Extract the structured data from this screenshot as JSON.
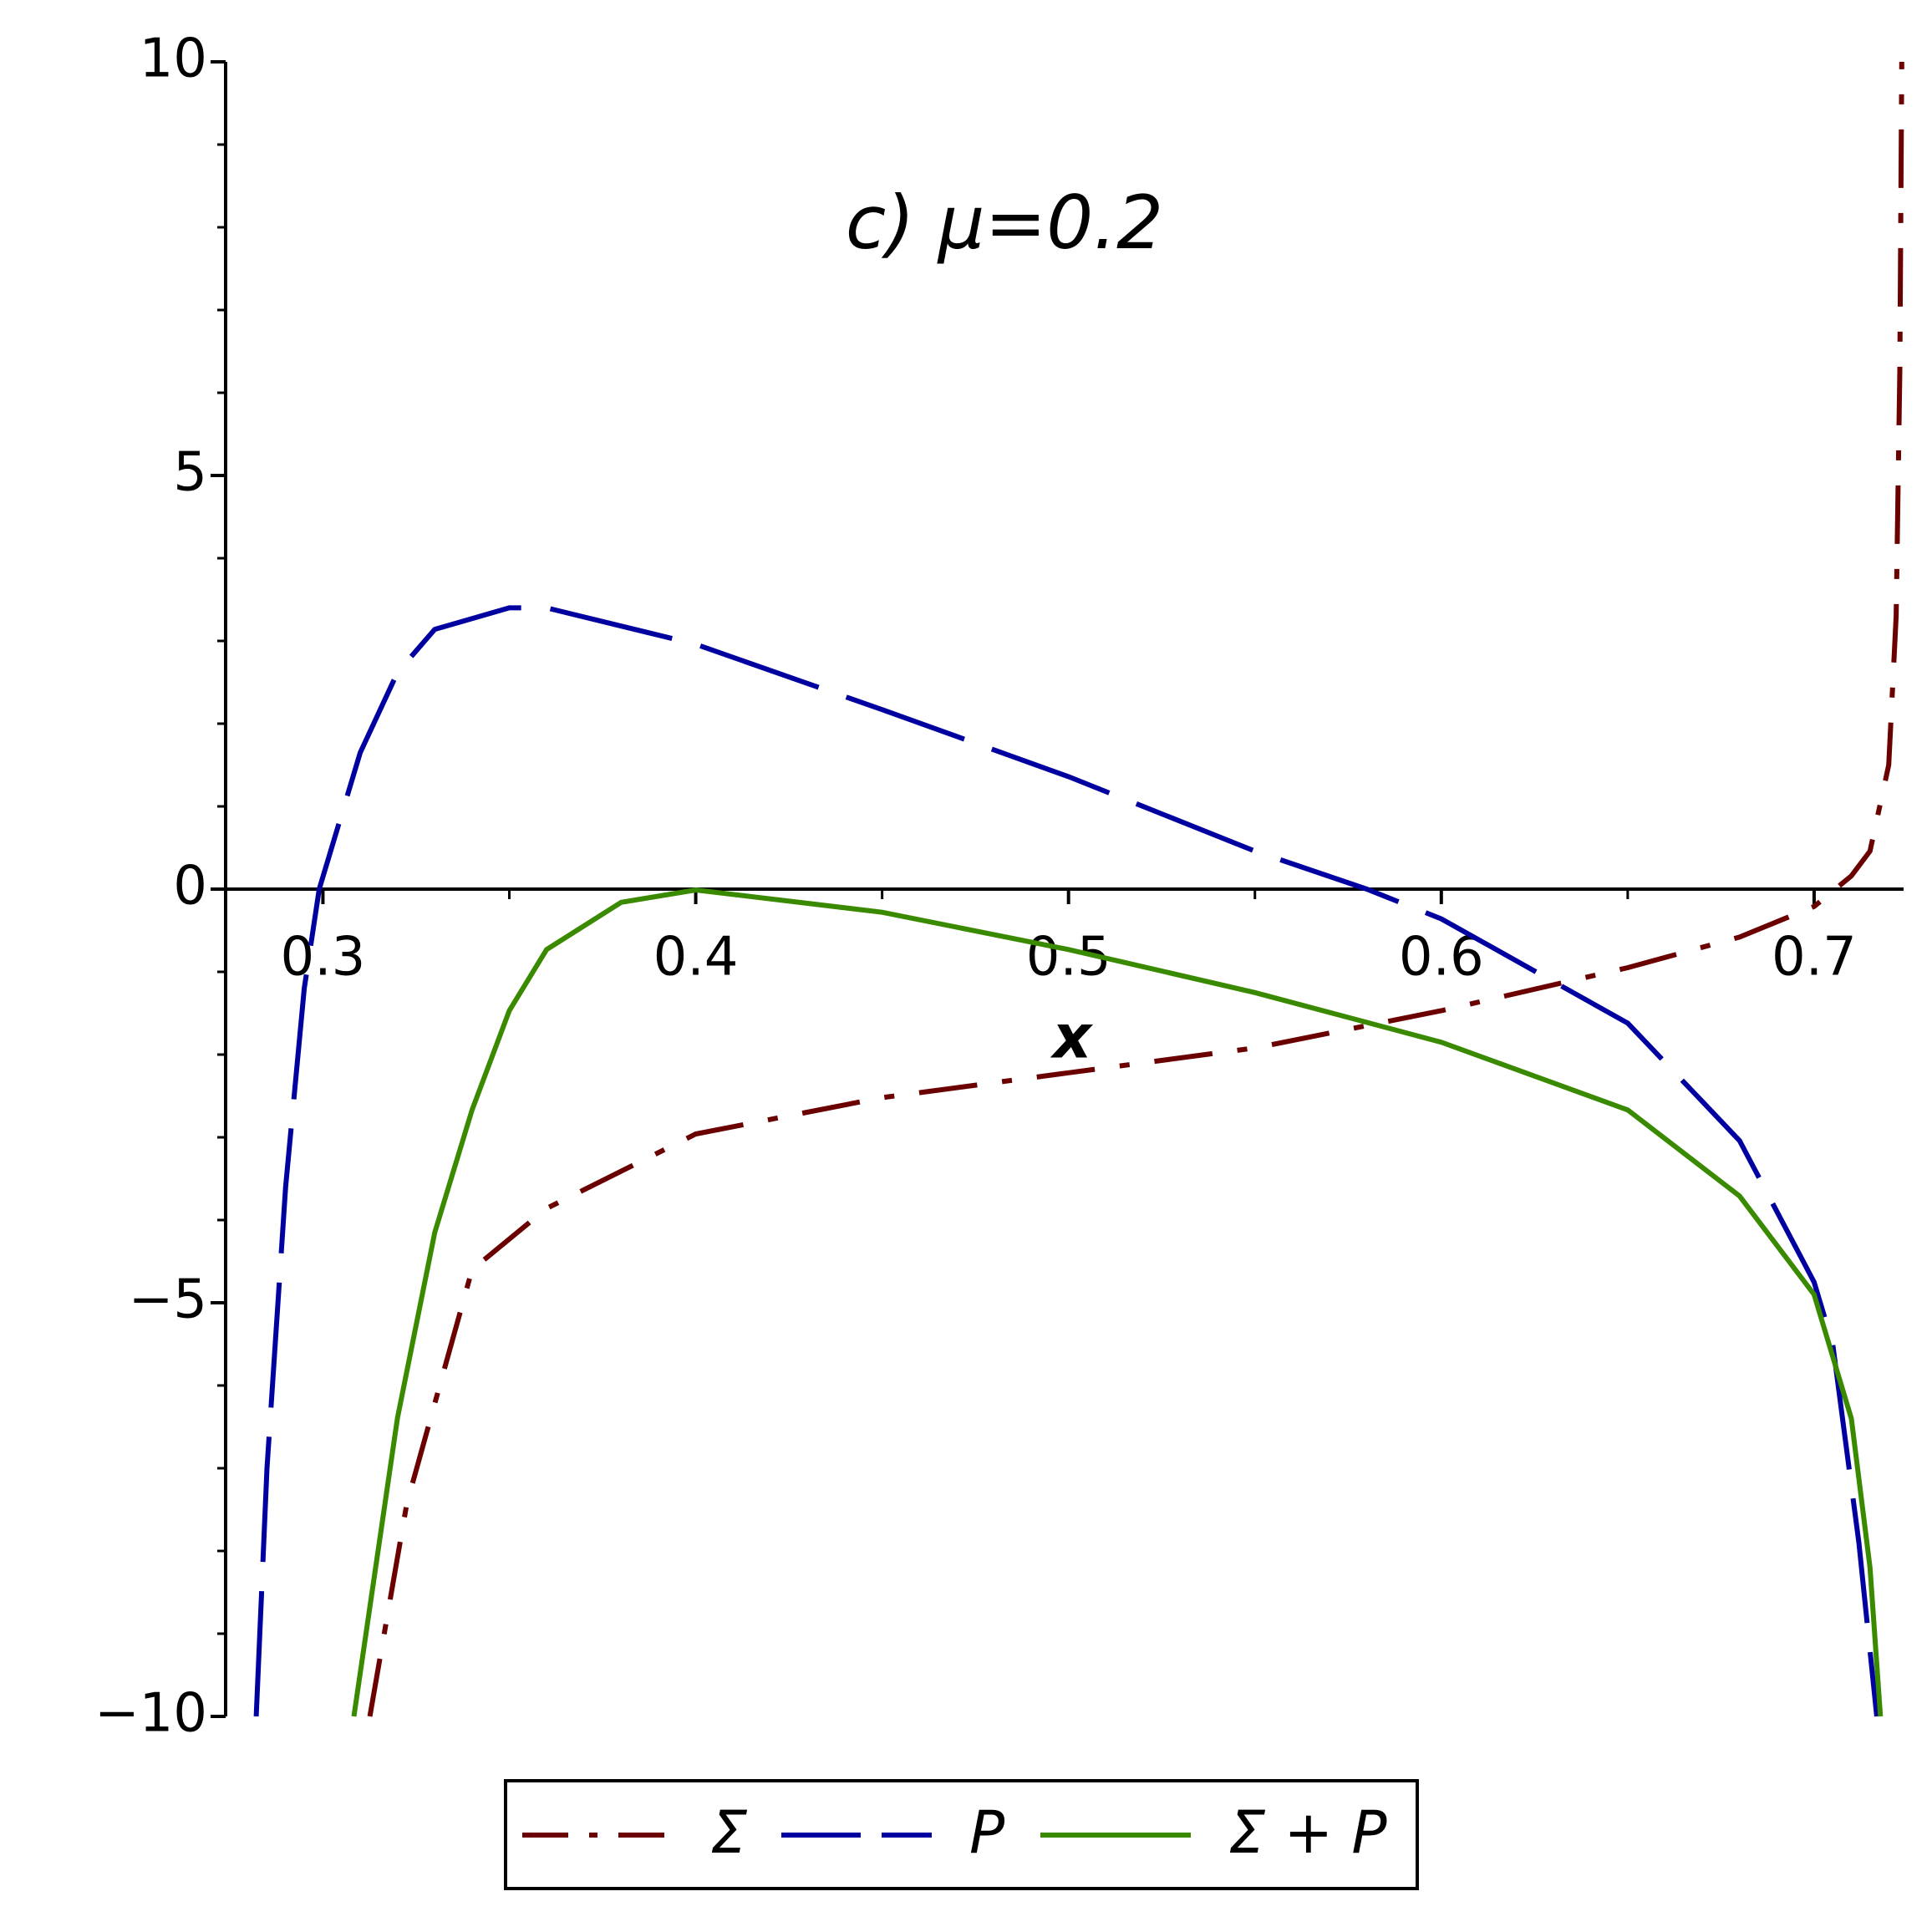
{
  "chart_data": {
    "type": "line",
    "title": "c) μ=0.2",
    "x_label": "x",
    "xlim": [
      0.2739,
      0.724
    ],
    "ylim": [
      -10,
      10
    ],
    "xticks": [
      0.3,
      0.4,
      0.5,
      0.6,
      0.7
    ],
    "yticks": [
      {
        "value": -10,
        "label": "−10"
      },
      {
        "value": -5,
        "label": "−5"
      },
      0,
      5,
      10
    ],
    "series": [
      {
        "name": "Σ",
        "color": "#6b0000",
        "style": "dashdot",
        "x": [
          0.3126,
          0.3225,
          0.34,
          0.36,
          0.4,
          0.45,
          0.5,
          0.55,
          0.6,
          0.65,
          0.68,
          0.7,
          0.71,
          0.715,
          0.72,
          0.722,
          0.723,
          0.7235
        ],
        "values": [
          -10,
          -7.43,
          -4.6,
          -3.86,
          -2.96,
          -2.52,
          -2.22,
          -1.92,
          -1.47,
          -0.95,
          -0.58,
          -0.21,
          0.16,
          0.46,
          1.5,
          3.3,
          6.27,
          10
        ]
      },
      {
        "name": "P",
        "color": "#0000a0",
        "style": "dash",
        "x": [
          0.2821,
          0.285,
          0.29,
          0.295,
          0.299,
          0.31,
          0.32,
          0.33,
          0.35,
          0.36,
          0.4,
          0.45,
          0.5,
          0.55,
          0.58,
          0.6,
          0.65,
          0.68,
          0.7,
          0.705,
          0.712,
          0.7168
        ],
        "values": [
          -10,
          -7.0,
          -3.6,
          -1.2,
          0,
          1.65,
          2.62,
          3.14,
          3.4,
          3.4,
          2.96,
          2.17,
          1.36,
          0.46,
          0,
          -0.36,
          -1.62,
          -3.04,
          -4.75,
          -5.5,
          -7.9,
          -10
        ]
      },
      {
        "name": "Σ + P",
        "color": "#3a8a00",
        "style": "solid",
        "x": [
          0.3083,
          0.32,
          0.33,
          0.34,
          0.35,
          0.36,
          0.38,
          0.4,
          0.45,
          0.5,
          0.55,
          0.6,
          0.65,
          0.68,
          0.7,
          0.71,
          0.715,
          0.7178
        ],
        "values": [
          -10,
          -6.39,
          -4.15,
          -2.67,
          -1.47,
          -0.73,
          -0.16,
          -0.01,
          -0.28,
          -0.73,
          -1.25,
          -1.85,
          -2.67,
          -3.71,
          -4.9,
          -6.4,
          -8.2,
          -10
        ]
      }
    ]
  }
}
